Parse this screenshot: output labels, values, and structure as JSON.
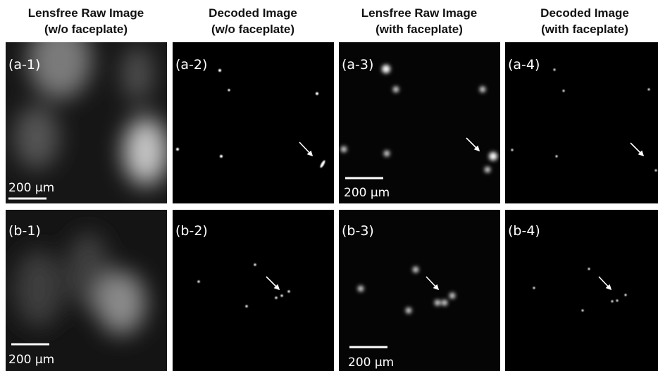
{
  "columns": [
    {
      "title_lines": [
        "Lensfree Raw Image",
        "(w/o faceplate)"
      ]
    },
    {
      "title_lines": [
        "Decoded Image",
        "(w/o faceplate)"
      ]
    },
    {
      "title_lines": [
        "Lensfree Raw Image",
        "(with faceplate)"
      ]
    },
    {
      "title_lines": [
        "Decoded Image",
        "(with faceplate)"
      ]
    }
  ],
  "panels": [
    {
      "label": "(a-1)",
      "scale_bar": "200 µm"
    },
    {
      "label": "(a-2)"
    },
    {
      "label": "(a-3)",
      "scale_bar": "200 µm"
    },
    {
      "label": "(a-4)"
    },
    {
      "label": "(b-1)",
      "scale_bar": "200 µm"
    },
    {
      "label": "(b-2)"
    },
    {
      "label": "(b-3)",
      "scale_bar": "200 µm"
    },
    {
      "label": "(b-4)"
    }
  ]
}
